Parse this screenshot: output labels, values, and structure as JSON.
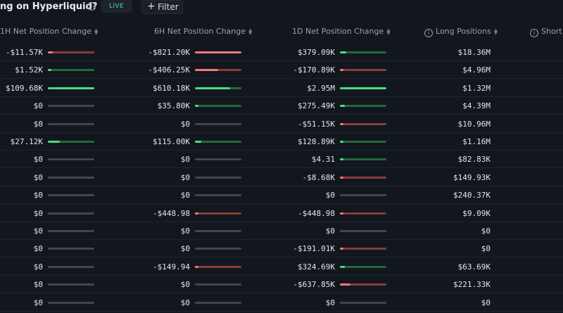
{
  "header": {
    "title": "ng on Hyperliquid?",
    "live_label": "LIVE",
    "filter_label": "Filter"
  },
  "columns": [
    "1H Net Position Change",
    "6H Net Position Change",
    "1D Net Position Change",
    "Long Positions",
    "Short P"
  ],
  "colors": {
    "positive": "#4ade80",
    "negative": "#f47a7a",
    "neutral": "#3f4650",
    "background": "#12161f"
  },
  "rows": [
    {
      "h1": {
        "value": "-$11.57K",
        "sign": "neg",
        "fill": 0.1
      },
      "h6": {
        "value": "-$821.20K",
        "sign": "neg",
        "fill": 1.0
      },
      "d1": {
        "value": "$379.09K",
        "sign": "pos",
        "fill": 0.13
      },
      "long": "$18.36M"
    },
    {
      "h1": {
        "value": "$1.52K",
        "sign": "pos",
        "fill": 0.0
      },
      "h6": {
        "value": "-$406.25K",
        "sign": "neg",
        "fill": 0.5
      },
      "d1": {
        "value": "-$170.89K",
        "sign": "neg",
        "fill": 0.06
      },
      "long": "$4.96M"
    },
    {
      "h1": {
        "value": "$109.68K",
        "sign": "pos",
        "fill": 1.0
      },
      "h6": {
        "value": "$610.18K",
        "sign": "pos",
        "fill": 0.75
      },
      "d1": {
        "value": "$2.95M",
        "sign": "pos",
        "fill": 1.0
      },
      "long": "$1.32M"
    },
    {
      "h1": {
        "value": "$0",
        "sign": "zero",
        "fill": 0
      },
      "h6": {
        "value": "$35.80K",
        "sign": "pos",
        "fill": 0.04
      },
      "d1": {
        "value": "$275.49K",
        "sign": "pos",
        "fill": 0.1
      },
      "long": "$4.39M"
    },
    {
      "h1": {
        "value": "$0",
        "sign": "zero",
        "fill": 0
      },
      "h6": {
        "value": "$0",
        "sign": "zero",
        "fill": 0
      },
      "d1": {
        "value": "-$51.15K",
        "sign": "neg",
        "fill": 0.0
      },
      "long": "$10.96M"
    },
    {
      "h1": {
        "value": "$27.12K",
        "sign": "pos",
        "fill": 0.25
      },
      "h6": {
        "value": "$115.00K",
        "sign": "pos",
        "fill": 0.14
      },
      "d1": {
        "value": "$128.89K",
        "sign": "pos",
        "fill": 0.05
      },
      "long": "$1.16M"
    },
    {
      "h1": {
        "value": "$0",
        "sign": "zero",
        "fill": 0
      },
      "h6": {
        "value": "$0",
        "sign": "zero",
        "fill": 0
      },
      "d1": {
        "value": "$4.31",
        "sign": "pos",
        "fill": 0
      },
      "long": "$82.83K"
    },
    {
      "h1": {
        "value": "$0",
        "sign": "zero",
        "fill": 0
      },
      "h6": {
        "value": "$0",
        "sign": "zero",
        "fill": 0
      },
      "d1": {
        "value": "-$8.68K",
        "sign": "neg",
        "fill": 0
      },
      "long": "$149.93K"
    },
    {
      "h1": {
        "value": "$0",
        "sign": "zero",
        "fill": 0
      },
      "h6": {
        "value": "$0",
        "sign": "zero",
        "fill": 0
      },
      "d1": {
        "value": "$0",
        "sign": "zero",
        "fill": 0
      },
      "long": "$240.37K"
    },
    {
      "h1": {
        "value": "$0",
        "sign": "zero",
        "fill": 0
      },
      "h6": {
        "value": "-$448.98",
        "sign": "neg",
        "fill": 0
      },
      "d1": {
        "value": "-$448.98",
        "sign": "neg",
        "fill": 0
      },
      "long": "$9.09K"
    },
    {
      "h1": {
        "value": "$0",
        "sign": "zero",
        "fill": 0
      },
      "h6": {
        "value": "$0",
        "sign": "zero",
        "fill": 0
      },
      "d1": {
        "value": "$0",
        "sign": "zero",
        "fill": 0
      },
      "long": "$0"
    },
    {
      "h1": {
        "value": "$0",
        "sign": "zero",
        "fill": 0
      },
      "h6": {
        "value": "$0",
        "sign": "zero",
        "fill": 0
      },
      "d1": {
        "value": "-$191.01K",
        "sign": "neg",
        "fill": 0.06
      },
      "long": "$0"
    },
    {
      "h1": {
        "value": "$0",
        "sign": "zero",
        "fill": 0
      },
      "h6": {
        "value": "-$149.94",
        "sign": "neg",
        "fill": 0
      },
      "d1": {
        "value": "$324.69K",
        "sign": "pos",
        "fill": 0.11
      },
      "long": "$63.69K"
    },
    {
      "h1": {
        "value": "$0",
        "sign": "zero",
        "fill": 0
      },
      "h6": {
        "value": "$0",
        "sign": "zero",
        "fill": 0
      },
      "d1": {
        "value": "-$637.85K",
        "sign": "neg",
        "fill": 0.22
      },
      "long": "$221.33K"
    },
    {
      "h1": {
        "value": "$0",
        "sign": "zero",
        "fill": 0
      },
      "h6": {
        "value": "$0",
        "sign": "zero",
        "fill": 0
      },
      "d1": {
        "value": "$0",
        "sign": "zero",
        "fill": 0
      },
      "long": "$0"
    }
  ]
}
